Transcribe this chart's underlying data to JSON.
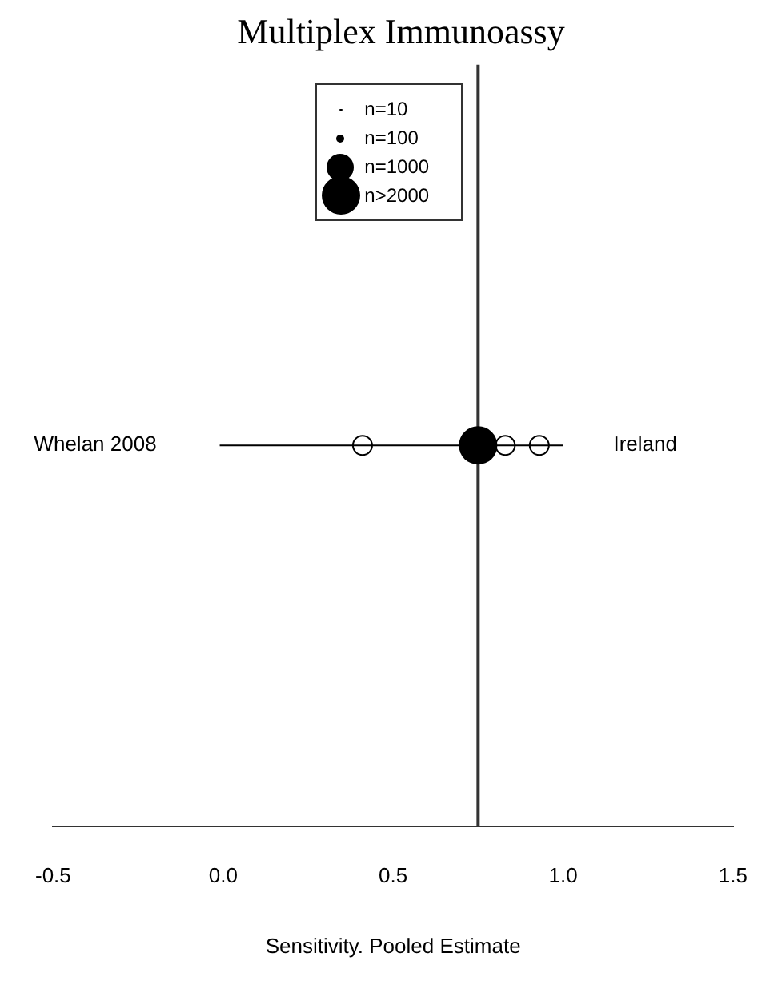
{
  "chart_data": {
    "type": "scatter",
    "title": "Multiplex Immunoassy",
    "xlabel": "Sensitivity. Pooled Estimate",
    "orientation": "horizontal",
    "categories": [
      "Whelan 2008"
    ],
    "y2_categories": [
      "Ireland"
    ],
    "xlim": [
      -0.5,
      1.5
    ],
    "xticks": [
      {
        "value": -0.5,
        "label": "-0.5"
      },
      {
        "value": 0,
        "label": "0.0"
      },
      {
        "value": 0.5,
        "label": "0.5"
      },
      {
        "value": 1,
        "label": "1.0"
      },
      {
        "value": 1.5,
        "label": "1.5"
      }
    ],
    "series": [
      {
        "marker": "circle",
        "color": "#000000",
        "values": [
          0.41
        ]
      },
      {
        "marker": "circle",
        "color": "#000000",
        "values": [
          0.83
        ]
      },
      {
        "marker": "circle",
        "color": "#000000",
        "values": [
          0.93
        ]
      },
      {
        "type": "bubble",
        "color": "#000000",
        "values": [
          0.75
        ],
        "errors": [
          [
            -0.01,
            1.0
          ]
        ],
        "sizes": [
          2000
        ]
      }
    ],
    "size_legend": [
      {
        "value": 10,
        "label": "n=10"
      },
      {
        "value": 100,
        "label": "n=100"
      },
      {
        "value": 1000,
        "label": "n=1000"
      },
      {
        "value": 2000,
        "label": "n>2000"
      }
    ],
    "ref_lines": [
      {
        "axis": "x",
        "value": 0.75,
        "label": null,
        "color": "#333333"
      }
    ],
    "grid": false
  }
}
